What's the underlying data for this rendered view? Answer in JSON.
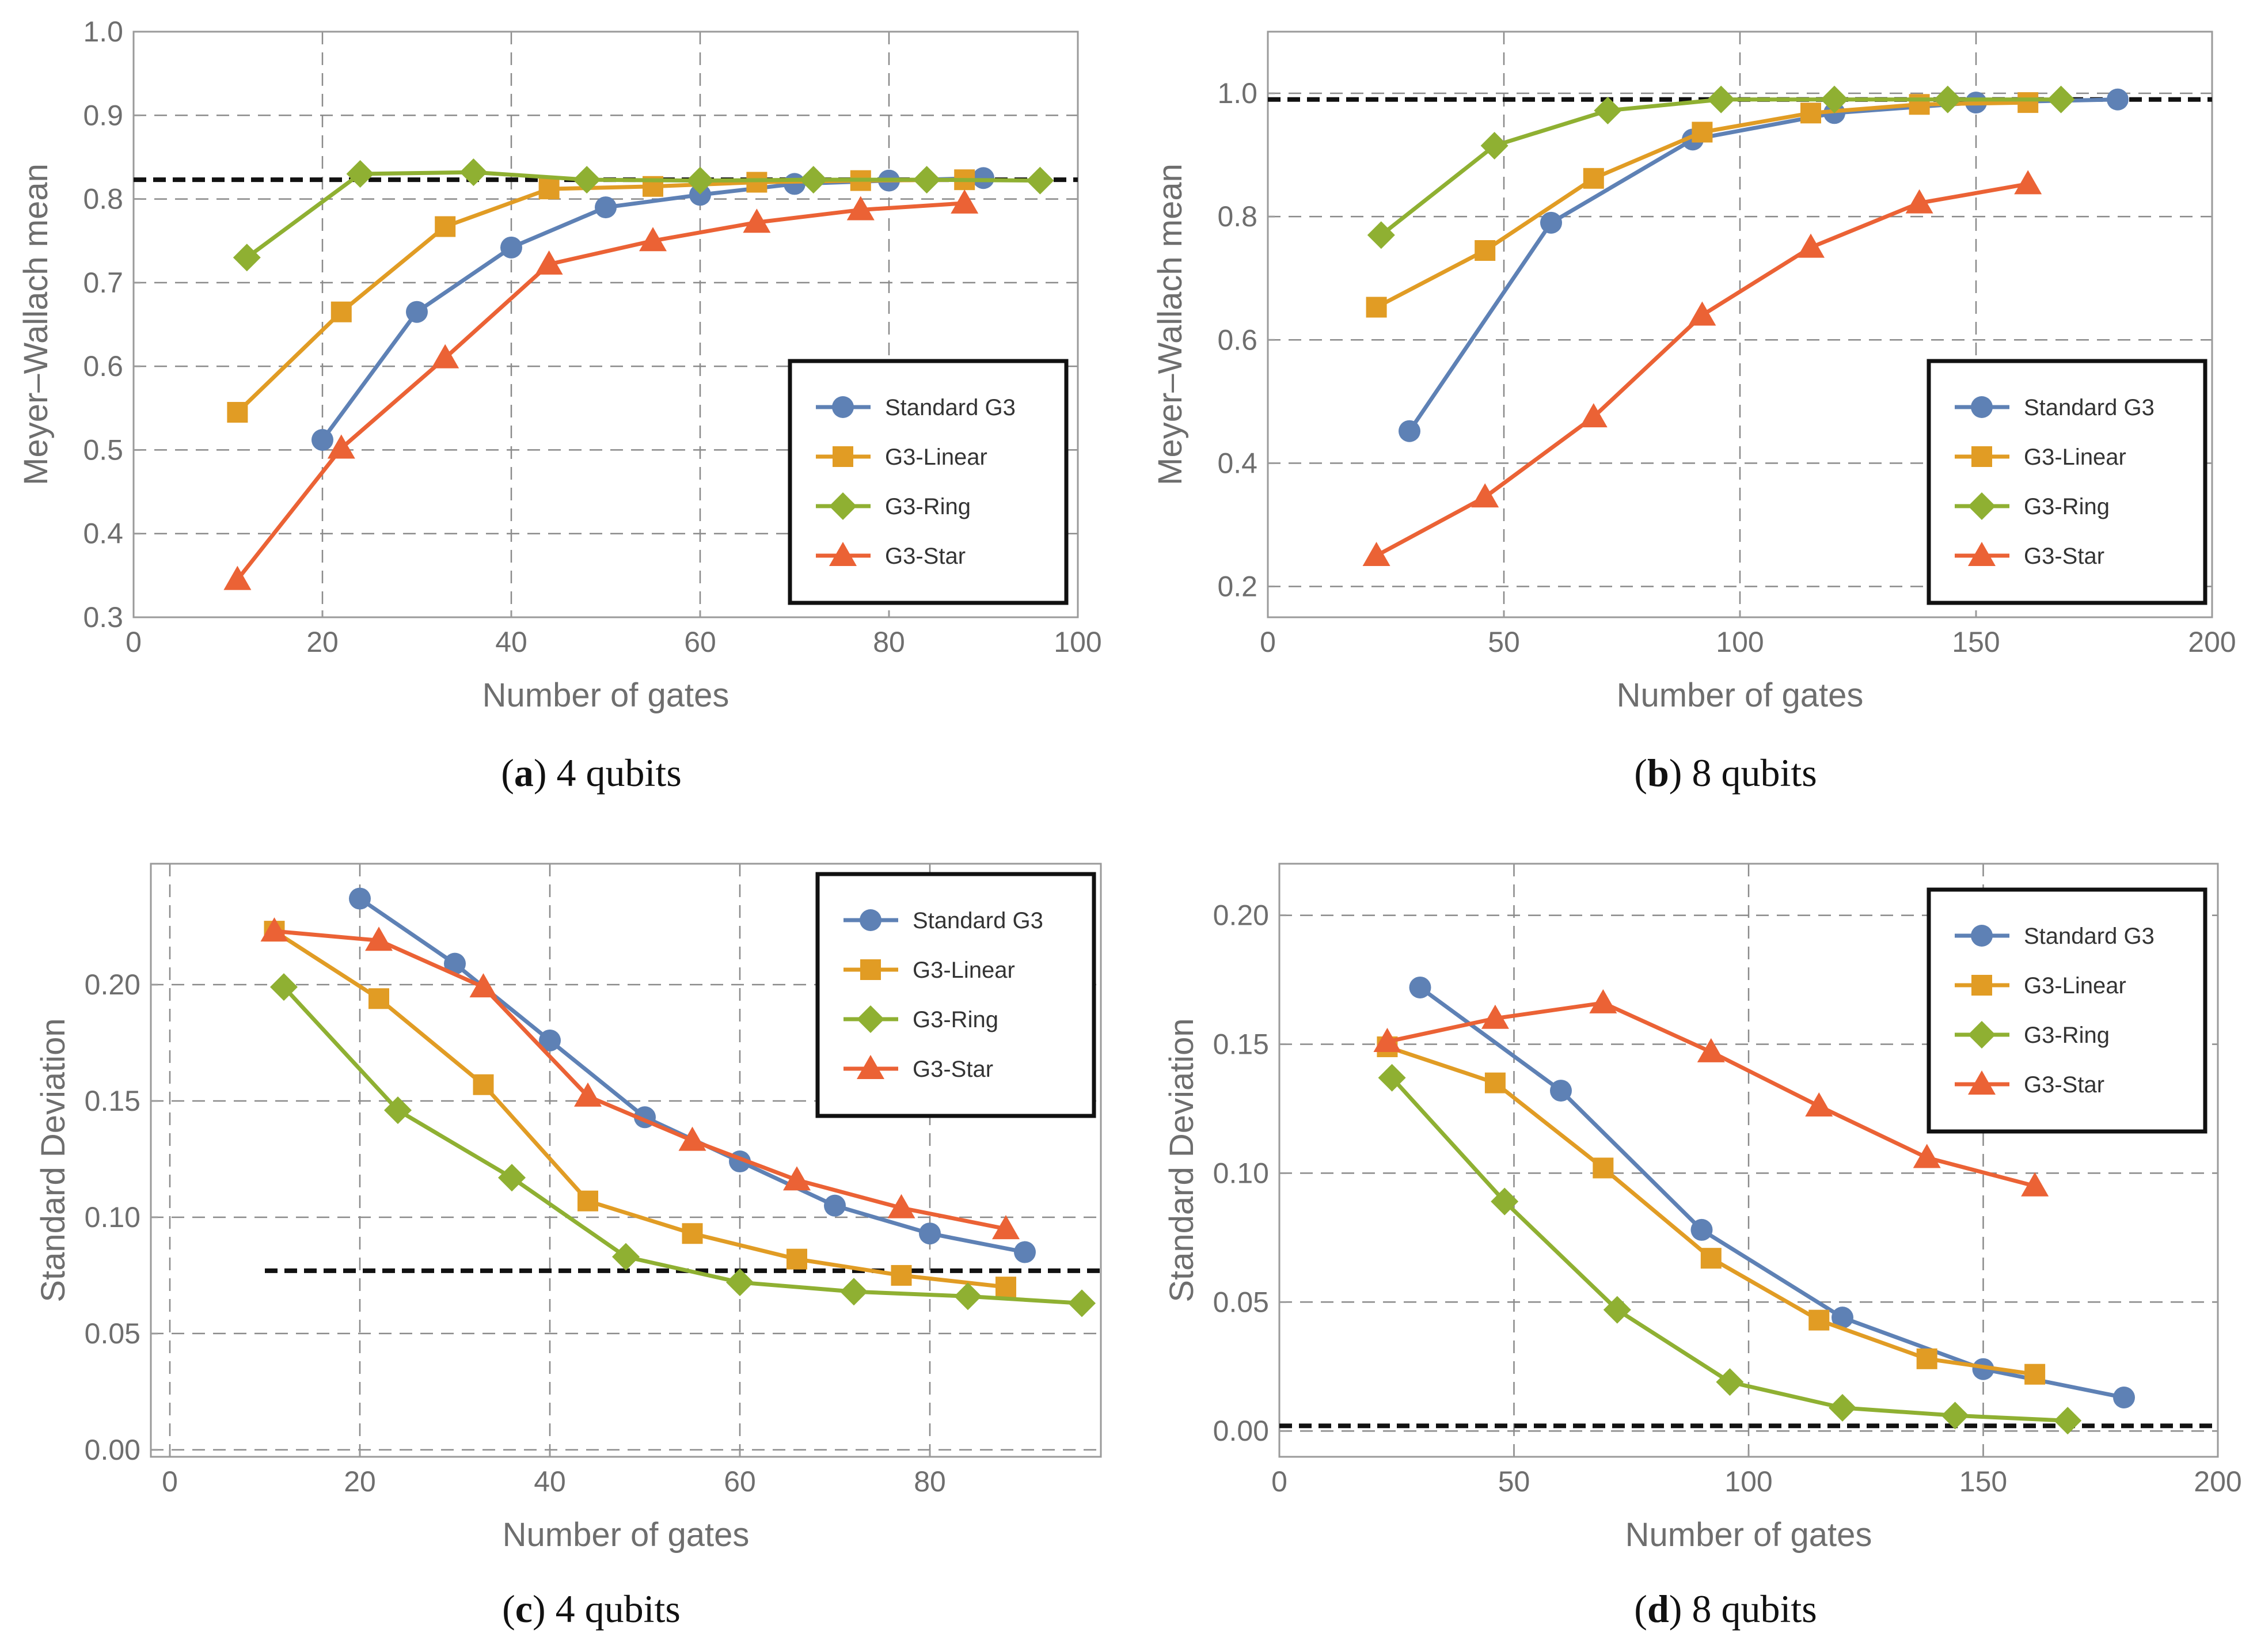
{
  "chart_data": [
    {
      "id": "a",
      "type": "line",
      "caption_letter": "a",
      "caption_text": " 4 qubits",
      "xlabel": "Number of gates",
      "ylabel": "Meyer–Wallach mean",
      "xlim": [
        0,
        100
      ],
      "ylim": [
        0.3,
        1.0
      ],
      "xticks": [
        0,
        20,
        40,
        60,
        80,
        100
      ],
      "yticks": [
        0.3,
        0.4,
        0.5,
        0.6,
        0.7,
        0.8,
        0.9,
        1.0
      ],
      "xtick_labels": [
        "0",
        "20",
        "40",
        "60",
        "80",
        "100"
      ],
      "ytick_labels": [
        "0.3",
        "0.4",
        "0.5",
        "0.6",
        "0.7",
        "0.8",
        "0.9",
        "1.0"
      ],
      "grid": true,
      "reference_line": {
        "y": 0.823,
        "x_from": 0,
        "x_to": 100
      },
      "legend_position": "lower-right",
      "series": [
        {
          "name": "Standard G3",
          "marker": "circle",
          "color": "#5e81b5",
          "x": [
            20,
            30,
            40,
            50,
            60,
            70,
            80,
            90
          ],
          "y": [
            0.512,
            0.665,
            0.742,
            0.79,
            0.805,
            0.818,
            0.822,
            0.825
          ]
        },
        {
          "name": "G3-Linear",
          "marker": "square",
          "color": "#e19c24",
          "x": [
            11,
            22,
            33,
            44,
            55,
            66,
            77,
            88
          ],
          "y": [
            0.545,
            0.665,
            0.767,
            0.812,
            0.815,
            0.82,
            0.822,
            0.823
          ]
        },
        {
          "name": "G3-Ring",
          "marker": "diamond",
          "color": "#8fb032",
          "x": [
            12,
            24,
            36,
            48,
            60,
            72,
            84,
            96
          ],
          "y": [
            0.73,
            0.83,
            0.832,
            0.823,
            0.822,
            0.823,
            0.823,
            0.822
          ]
        },
        {
          "name": "G3-Star",
          "marker": "triangle",
          "color": "#eb6235",
          "x": [
            11,
            22,
            33,
            44,
            55,
            66,
            77,
            88
          ],
          "y": [
            0.345,
            0.502,
            0.61,
            0.722,
            0.75,
            0.772,
            0.787,
            0.795
          ]
        }
      ]
    },
    {
      "id": "b",
      "type": "line",
      "caption_letter": "b",
      "caption_text": " 8 qubits",
      "xlabel": "Number of gates",
      "ylabel": "Meyer–Wallach mean",
      "xlim": [
        0,
        200
      ],
      "ylim": [
        0.15,
        1.1
      ],
      "xticks": [
        0,
        50,
        100,
        150,
        200
      ],
      "yticks": [
        0.2,
        0.4,
        0.6,
        0.8,
        1.0
      ],
      "xtick_labels": [
        "0",
        "50",
        "100",
        "150",
        "200"
      ],
      "ytick_labels": [
        "0.2",
        "0.4",
        "0.6",
        "0.8",
        "1.0"
      ],
      "grid": true,
      "reference_line": {
        "y": 0.99,
        "x_from": 0,
        "x_to": 200
      },
      "legend_position": "lower-right",
      "series": [
        {
          "name": "Standard G3",
          "marker": "circle",
          "color": "#5e81b5",
          "x": [
            30,
            60,
            90,
            120,
            150,
            180
          ],
          "y": [
            0.452,
            0.79,
            0.925,
            0.968,
            0.985,
            0.99
          ]
        },
        {
          "name": "G3-Linear",
          "marker": "square",
          "color": "#e19c24",
          "x": [
            23,
            46,
            69,
            92,
            115,
            138,
            161
          ],
          "y": [
            0.653,
            0.745,
            0.862,
            0.937,
            0.968,
            0.982,
            0.985
          ]
        },
        {
          "name": "G3-Ring",
          "marker": "diamond",
          "color": "#8fb032",
          "x": [
            24,
            48,
            72,
            96,
            120,
            144,
            168
          ],
          "y": [
            0.77,
            0.915,
            0.972,
            0.99,
            0.99,
            0.99,
            0.99
          ]
        },
        {
          "name": "G3-Star",
          "marker": "triangle",
          "color": "#eb6235",
          "x": [
            23,
            46,
            69,
            92,
            115,
            138,
            161
          ],
          "y": [
            0.25,
            0.345,
            0.475,
            0.64,
            0.75,
            0.822,
            0.853
          ]
        }
      ]
    },
    {
      "id": "c",
      "type": "line",
      "caption_letter": "c",
      "caption_text": " 4 qubits",
      "xlabel": "Number of gates",
      "ylabel": "Standard Deviation",
      "xlim": [
        -2,
        98
      ],
      "ylim": [
        -0.003,
        0.252
      ],
      "xticks": [
        0,
        20,
        40,
        60,
        80
      ],
      "yticks": [
        0.0,
        0.05,
        0.1,
        0.15,
        0.2
      ],
      "xtick_labels": [
        "0",
        "20",
        "40",
        "60",
        "80"
      ],
      "ytick_labels": [
        "0.00",
        "0.05",
        "0.10",
        "0.15",
        "0.20"
      ],
      "grid": true,
      "reference_line": {
        "y": 0.077,
        "x_from": 10,
        "x_to": 98
      },
      "legend_position": "top-right",
      "series": [
        {
          "name": "Standard G3",
          "marker": "circle",
          "color": "#5e81b5",
          "x": [
            20,
            30,
            40,
            50,
            60,
            70,
            80,
            90
          ],
          "y": [
            0.237,
            0.209,
            0.176,
            0.143,
            0.124,
            0.105,
            0.093,
            0.085
          ]
        },
        {
          "name": "G3-Linear",
          "marker": "square",
          "color": "#e19c24",
          "x": [
            11,
            22,
            33,
            44,
            55,
            66,
            77,
            88
          ],
          "y": [
            0.223,
            0.194,
            0.157,
            0.107,
            0.093,
            0.082,
            0.075,
            0.07
          ]
        },
        {
          "name": "G3-Ring",
          "marker": "diamond",
          "color": "#8fb032",
          "x": [
            12,
            24,
            36,
            48,
            60,
            72,
            84,
            96
          ],
          "y": [
            0.199,
            0.146,
            0.117,
            0.083,
            0.072,
            0.068,
            0.066,
            0.063
          ]
        },
        {
          "name": "G3-Star",
          "marker": "triangle",
          "color": "#eb6235",
          "x": [
            11,
            22,
            33,
            44,
            55,
            66,
            77,
            88
          ],
          "y": [
            0.223,
            0.219,
            0.199,
            0.152,
            0.133,
            0.116,
            0.104,
            0.095
          ]
        }
      ]
    },
    {
      "id": "d",
      "type": "line",
      "caption_letter": "d",
      "caption_text": " 8 qubits",
      "xlabel": "Number of gates",
      "ylabel": "Standard Deviation",
      "xlim": [
        0,
        200
      ],
      "ylim": [
        -0.01,
        0.22
      ],
      "xticks": [
        0,
        50,
        100,
        150,
        200
      ],
      "yticks": [
        0.0,
        0.05,
        0.1,
        0.15,
        0.2
      ],
      "xtick_labels": [
        "0",
        "50",
        "100",
        "150",
        "200"
      ],
      "ytick_labels": [
        "0.00",
        "0.05",
        "0.10",
        "0.15",
        "0.20"
      ],
      "grid": true,
      "reference_line": {
        "y": 0.002,
        "x_from": 0,
        "x_to": 200
      },
      "legend_position": "top-right",
      "series": [
        {
          "name": "Standard G3",
          "marker": "circle",
          "color": "#5e81b5",
          "x": [
            30,
            60,
            90,
            120,
            150,
            180
          ],
          "y": [
            0.172,
            0.132,
            0.078,
            0.044,
            0.024,
            0.013
          ]
        },
        {
          "name": "G3-Linear",
          "marker": "square",
          "color": "#e19c24",
          "x": [
            23,
            46,
            69,
            92,
            115,
            138,
            161
          ],
          "y": [
            0.149,
            0.135,
            0.102,
            0.067,
            0.043,
            0.028,
            0.022
          ]
        },
        {
          "name": "G3-Ring",
          "marker": "diamond",
          "color": "#8fb032",
          "x": [
            24,
            48,
            72,
            96,
            120,
            144,
            168
          ],
          "y": [
            0.137,
            0.089,
            0.047,
            0.019,
            0.009,
            0.006,
            0.004
          ]
        },
        {
          "name": "G3-Star",
          "marker": "triangle",
          "color": "#eb6235",
          "x": [
            23,
            46,
            69,
            92,
            115,
            138,
            161
          ],
          "y": [
            0.151,
            0.16,
            0.166,
            0.147,
            0.126,
            0.106,
            0.095
          ]
        }
      ]
    }
  ]
}
